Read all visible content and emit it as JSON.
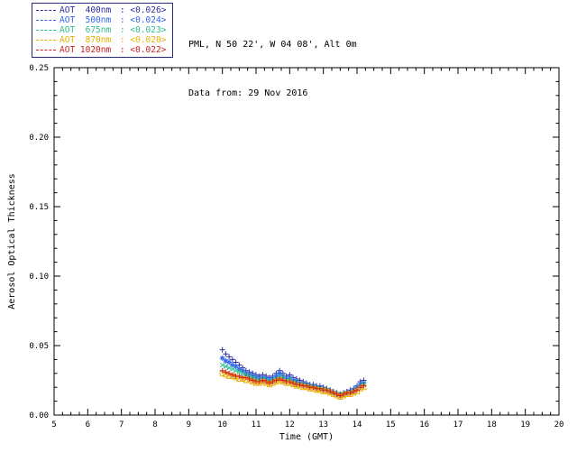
{
  "header": {
    "station_line": "PML, N 50 22', W 04 08', Alt 0m",
    "date_line": "Data from: 29 Nov 2016"
  },
  "legend": {
    "separator": " : "
  },
  "chart_data": {
    "type": "scatter",
    "title": "",
    "xlabel": "Time (GMT)",
    "ylabel": "Aerosol Optical Thickness",
    "xlim": [
      5,
      20
    ],
    "ylim": [
      0,
      0.25
    ],
    "xticks": [
      5,
      6,
      7,
      8,
      9,
      10,
      11,
      12,
      13,
      14,
      15,
      16,
      17,
      18,
      19,
      20
    ],
    "yticks": [
      0,
      0.05,
      0.1,
      0.15,
      0.2,
      0.25
    ],
    "ytick_labels": [
      "0.00",
      "0.05",
      "0.10",
      "0.15",
      "0.20",
      "0.25"
    ],
    "grid": false,
    "legend_position": "top-left",
    "x": [
      10.0,
      10.1,
      10.2,
      10.3,
      10.4,
      10.5,
      10.6,
      10.7,
      10.8,
      10.9,
      11.0,
      11.1,
      11.2,
      11.3,
      11.4,
      11.5,
      11.6,
      11.7,
      11.8,
      11.9,
      12.0,
      12.1,
      12.2,
      12.3,
      12.4,
      12.5,
      12.6,
      12.7,
      12.8,
      12.9,
      13.0,
      13.1,
      13.2,
      13.3,
      13.4,
      13.5,
      13.6,
      13.7,
      13.8,
      13.9,
      14.0,
      14.1,
      14.2
    ],
    "series": [
      {
        "name": "AOT 400nm",
        "label": "AOT  400nm",
        "avg": "<0.026>",
        "color": "#2e2e9e",
        "marker": "plus",
        "values": [
          0.047,
          0.044,
          0.042,
          0.04,
          0.038,
          0.036,
          0.034,
          0.032,
          0.031,
          0.03,
          0.029,
          0.028,
          0.029,
          0.028,
          0.027,
          0.028,
          0.03,
          0.032,
          0.03,
          0.028,
          0.029,
          0.027,
          0.026,
          0.025,
          0.024,
          0.023,
          0.022,
          0.022,
          0.021,
          0.021,
          0.02,
          0.019,
          0.018,
          0.017,
          0.016,
          0.015,
          0.016,
          0.017,
          0.018,
          0.019,
          0.021,
          0.024,
          0.025
        ]
      },
      {
        "name": "AOT 500nm",
        "label": "AOT  500nm",
        "avg": "<0.024>",
        "color": "#3366ee",
        "marker": "asterisk",
        "values": [
          0.041,
          0.039,
          0.038,
          0.036,
          0.035,
          0.033,
          0.032,
          0.03,
          0.029,
          0.028,
          0.027,
          0.026,
          0.027,
          0.026,
          0.025,
          0.026,
          0.028,
          0.03,
          0.028,
          0.026,
          0.027,
          0.025,
          0.024,
          0.023,
          0.022,
          0.022,
          0.021,
          0.021,
          0.02,
          0.02,
          0.019,
          0.018,
          0.017,
          0.016,
          0.015,
          0.014,
          0.015,
          0.016,
          0.017,
          0.018,
          0.02,
          0.022,
          0.023
        ]
      },
      {
        "name": "AOT 675nm",
        "label": "AOT  675nm",
        "avg": "<0.023>",
        "color": "#2ebf8f",
        "marker": "x",
        "values": [
          0.036,
          0.035,
          0.034,
          0.033,
          0.032,
          0.031,
          0.03,
          0.029,
          0.028,
          0.027,
          0.026,
          0.025,
          0.026,
          0.025,
          0.024,
          0.025,
          0.026,
          0.028,
          0.027,
          0.025,
          0.026,
          0.024,
          0.023,
          0.022,
          0.022,
          0.021,
          0.021,
          0.02,
          0.02,
          0.019,
          0.019,
          0.018,
          0.017,
          0.016,
          0.015,
          0.014,
          0.015,
          0.016,
          0.016,
          0.017,
          0.019,
          0.021,
          0.022
        ]
      },
      {
        "name": "AOT 870nm",
        "label": "AOT  870nm",
        "avg": "<0.020>",
        "color": "#eab000",
        "marker": "square",
        "values": [
          0.03,
          0.029,
          0.028,
          0.028,
          0.027,
          0.026,
          0.026,
          0.025,
          0.025,
          0.024,
          0.023,
          0.023,
          0.024,
          0.023,
          0.022,
          0.023,
          0.024,
          0.025,
          0.024,
          0.023,
          0.023,
          0.022,
          0.021,
          0.021,
          0.02,
          0.02,
          0.019,
          0.019,
          0.018,
          0.018,
          0.017,
          0.017,
          0.016,
          0.015,
          0.014,
          0.013,
          0.014,
          0.015,
          0.015,
          0.016,
          0.017,
          0.019,
          0.02
        ]
      },
      {
        "name": "AOT 1020nm",
        "label": "AOT 1020nm",
        "avg": "<0.022>",
        "color": "#cc2020",
        "marker": "plus",
        "values": [
          0.032,
          0.031,
          0.03,
          0.029,
          0.028,
          0.028,
          0.027,
          0.027,
          0.026,
          0.025,
          0.024,
          0.024,
          0.025,
          0.024,
          0.023,
          0.024,
          0.025,
          0.026,
          0.025,
          0.024,
          0.024,
          0.023,
          0.022,
          0.022,
          0.021,
          0.021,
          0.02,
          0.02,
          0.019,
          0.019,
          0.018,
          0.018,
          0.017,
          0.016,
          0.015,
          0.014,
          0.015,
          0.016,
          0.016,
          0.017,
          0.018,
          0.02,
          0.021
        ]
      }
    ]
  }
}
